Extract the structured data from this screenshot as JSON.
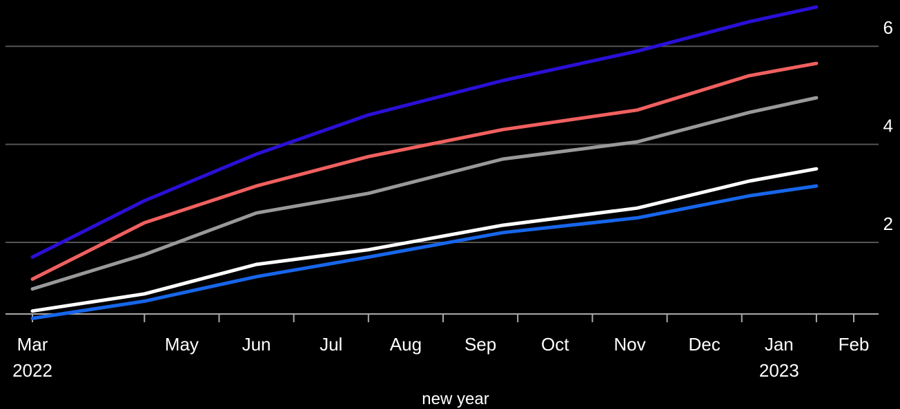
{
  "chart_data": {
    "type": "line",
    "xlabel": "new year",
    "ylabel": "",
    "ylim": [
      0.55,
      6.8
    ],
    "y_ticks": [
      2,
      4,
      6
    ],
    "x_ticks": [
      {
        "x": 0,
        "label": "Mar",
        "sub": "2022"
      },
      {
        "x": 2,
        "label": "May",
        "sub": ""
      },
      {
        "x": 3,
        "label": "Jun",
        "sub": ""
      },
      {
        "x": 4,
        "label": "Jul",
        "sub": ""
      },
      {
        "x": 5,
        "label": "Aug",
        "sub": ""
      },
      {
        "x": 6,
        "label": "Sep",
        "sub": ""
      },
      {
        "x": 7,
        "label": "Oct",
        "sub": ""
      },
      {
        "x": 8,
        "label": "Nov",
        "sub": ""
      },
      {
        "x": 9,
        "label": "Dec",
        "sub": ""
      },
      {
        "x": 10,
        "label": "Jan",
        "sub": "2023"
      },
      {
        "x": 11,
        "label": "Feb",
        "sub": ""
      }
    ],
    "x_axis_ticks": [
      0,
      1.5,
      2.5,
      3.5,
      4.5,
      5.5,
      6.5,
      7.5,
      8.5,
      9.5,
      10.5
    ],
    "grid": true,
    "series": [
      {
        "color": "#2a10d6",
        "points": [
          [
            0,
            1.7
          ],
          [
            1.5,
            2.85
          ],
          [
            3,
            3.8
          ],
          [
            4.5,
            4.6
          ],
          [
            6.3,
            5.3
          ],
          [
            8.1,
            5.9
          ],
          [
            9.6,
            6.5
          ],
          [
            10.5,
            6.8
          ]
        ]
      },
      {
        "color": "#f0605f",
        "points": [
          [
            0,
            1.25
          ],
          [
            1.5,
            2.4
          ],
          [
            3,
            3.15
          ],
          [
            4.5,
            3.75
          ],
          [
            6.3,
            4.3
          ],
          [
            8.1,
            4.7
          ],
          [
            9.6,
            5.4
          ],
          [
            10.5,
            5.65
          ]
        ]
      },
      {
        "color": "#999999",
        "points": [
          [
            0,
            1.05
          ],
          [
            1.5,
            1.75
          ],
          [
            3,
            2.6
          ],
          [
            4.5,
            3.0
          ],
          [
            6.3,
            3.7
          ],
          [
            8.1,
            4.05
          ],
          [
            9.6,
            4.65
          ],
          [
            10.5,
            4.95
          ]
        ]
      },
      {
        "color": "#ffffff",
        "points": [
          [
            0,
            0.6
          ],
          [
            1.5,
            0.95
          ],
          [
            3,
            1.55
          ],
          [
            4.5,
            1.85
          ],
          [
            6.3,
            2.35
          ],
          [
            8.1,
            2.7
          ],
          [
            9.6,
            3.25
          ],
          [
            10.5,
            3.5
          ]
        ]
      },
      {
        "color": "#1766ea",
        "points": [
          [
            0,
            0.45
          ],
          [
            1.5,
            0.8
          ],
          [
            3,
            1.3
          ],
          [
            4.5,
            1.7
          ],
          [
            6.3,
            2.2
          ],
          [
            8.1,
            2.5
          ],
          [
            9.6,
            2.95
          ],
          [
            10.5,
            3.15
          ]
        ]
      }
    ]
  }
}
